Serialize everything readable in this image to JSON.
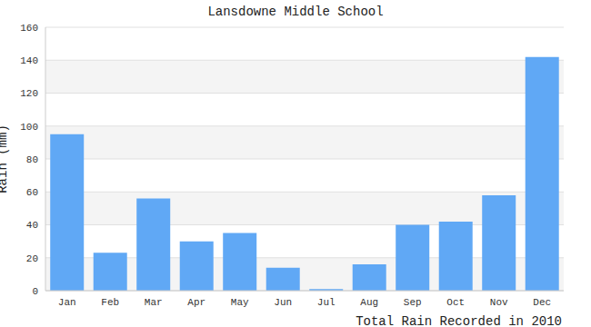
{
  "chart_data": {
    "type": "bar",
    "title": "Lansdowne Middle School",
    "y_label": "Rain (mm)",
    "x_label": "Total Rain Recorded in 2010",
    "categories": [
      "Jan",
      "Feb",
      "Mar",
      "Apr",
      "May",
      "Jun",
      "Jul",
      "Aug",
      "Sep",
      "Oct",
      "Nov",
      "Dec"
    ],
    "values": [
      95,
      23,
      56,
      30,
      35,
      14,
      1,
      16,
      40,
      42,
      58,
      142
    ],
    "color": "#60a8f5",
    "ylim": [
      0,
      160
    ],
    "yticks": [
      0,
      20,
      40,
      60,
      80,
      100,
      120,
      140,
      160
    ],
    "grid": true
  }
}
